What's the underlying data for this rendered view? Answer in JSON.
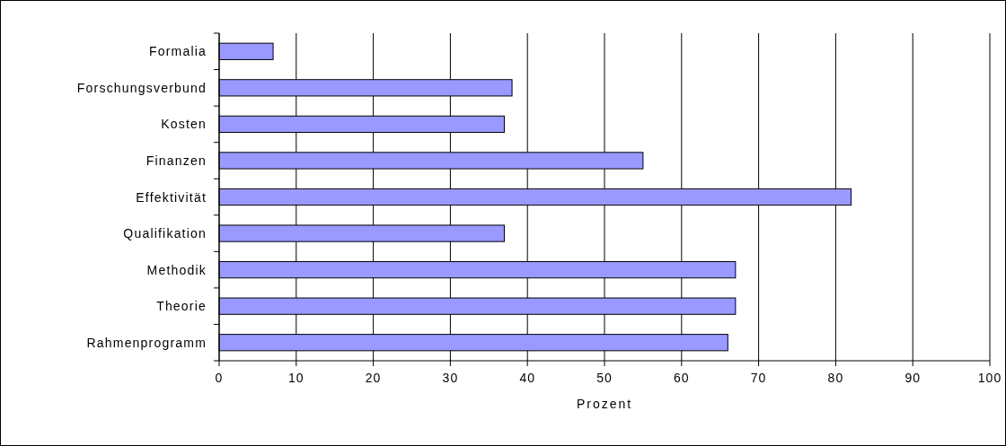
{
  "chart_data": {
    "type": "bar",
    "orientation": "horizontal",
    "categories": [
      "Formalia",
      "Forschungsverbund",
      "Kosten",
      "Finanzen",
      "Effektivität",
      "Qualifikation",
      "Methodik",
      "Theorie",
      "Rahmenprogramm"
    ],
    "values": [
      7,
      38,
      37,
      55,
      82,
      37,
      67,
      67,
      66
    ],
    "color": "#9999ff",
    "xlabel": "Prozent",
    "xlim": [
      0,
      100
    ],
    "xticks": [
      0,
      10,
      20,
      30,
      40,
      50,
      60,
      70,
      80,
      90,
      100
    ],
    "grid": "x"
  }
}
